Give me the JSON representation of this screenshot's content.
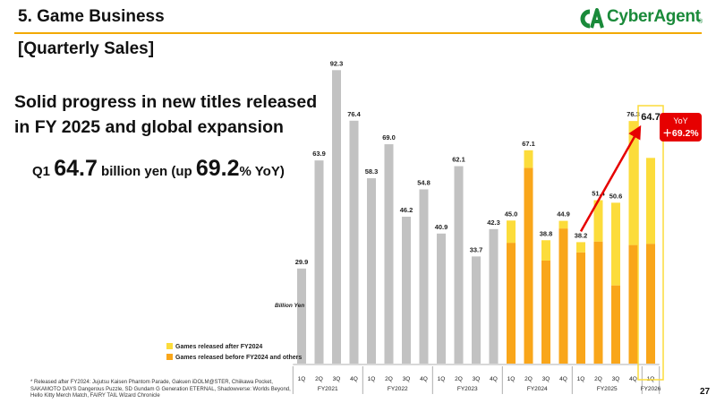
{
  "header": {
    "section_title": "5. Game Business",
    "subtitle": "[Quarterly Sales]",
    "logo_text": "CyberAgent",
    "logo_reg": "®"
  },
  "headline": {
    "line1": "Solid progress in new titles released",
    "line2": "in FY 2025 and global expansion"
  },
  "q1": {
    "prefix": "Q1 ",
    "value": "64.7",
    "mid": " billion yen (up ",
    "pct": "69.2",
    "suffix": "% YoY)"
  },
  "yoy_badge": {
    "label": "YoY",
    "value": "＋69.2%"
  },
  "footnote": "*  Released after FY2024: Jujutsu Kaisen Phantom Parade, Gakuen iDOLM@STER, Chiikawa Pocket, SAKAMOTO DAYS Dangerous Puzzle, SD Gundam G Generation ETERNAL, Shadowverse: Worlds Beyond, Hello Kitty Merch Match, FAIRY TAIL Wizard Chronicle",
  "page_number": "27",
  "colors": {
    "gray": "#c2c2c2",
    "new_titles": "#fcdc3b",
    "old_titles": "#f9a61a",
    "highlight_box": "#fcdc3b",
    "arrow": "#e60000",
    "badge": "#e60000",
    "rule": "#f2a900",
    "logo": "#1a8a3a"
  },
  "chart_data": {
    "type": "bar",
    "unit_label": "Billion Yen",
    "quarters": [
      "1Q",
      "2Q",
      "3Q",
      "4Q",
      "1Q",
      "2Q",
      "3Q",
      "4Q",
      "1Q",
      "2Q",
      "3Q",
      "4Q",
      "1Q",
      "2Q",
      "3Q",
      "4Q",
      "1Q",
      "2Q",
      "3Q",
      "4Q",
      "1Q"
    ],
    "fiscal_years": [
      {
        "label": "FY2021",
        "start": 0,
        "count": 4
      },
      {
        "label": "FY2022",
        "start": 4,
        "count": 4
      },
      {
        "label": "FY2023",
        "start": 8,
        "count": 4
      },
      {
        "label": "FY2024",
        "start": 12,
        "count": 4
      },
      {
        "label": "FY2025",
        "start": 16,
        "count": 4
      },
      {
        "label": "FY2026",
        "start": 20,
        "count": 1
      }
    ],
    "totals": [
      29.9,
      63.9,
      92.3,
      76.4,
      58.3,
      69.0,
      46.2,
      54.8,
      40.9,
      62.1,
      33.7,
      42.3,
      45.0,
      67.1,
      38.8,
      44.9,
      38.2,
      51.4,
      50.6,
      76.3,
      64.7
    ],
    "total_labels": [
      "29.9",
      "63.9",
      "92.3",
      "76.4",
      "58.3",
      "69.0",
      "46.2",
      "54.8",
      "40.9",
      "62.1",
      "33.7",
      "42.3",
      "45.0",
      "67.1",
      "38.8",
      "44.9",
      "38.2",
      "51.4",
      "50.6",
      "76.3",
      "64.7"
    ],
    "series": [
      {
        "name": "Games released after FY2024",
        "start_index": 12,
        "values": [
          7.0,
          5.5,
          6.4,
          2.4,
          3.2,
          13.0,
          26.0,
          39.0,
          27.0
        ]
      },
      {
        "name": "Games released before FY2024 and others",
        "start_index": 12,
        "values": [
          38.0,
          61.6,
          32.4,
          42.5,
          35.0,
          38.4,
          24.6,
          37.3,
          37.7
        ]
      }
    ],
    "legend_position": "bottom-left",
    "ylim": [
      0,
      100
    ],
    "grid": false
  }
}
